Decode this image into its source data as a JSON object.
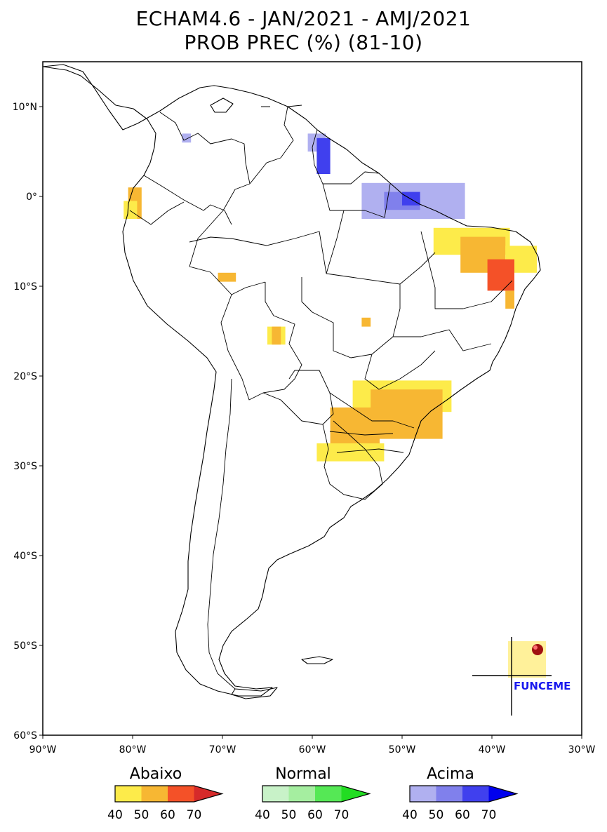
{
  "title": {
    "line1": "ECHAM4.6 - JAN/2021 - AMJ/2021",
    "line2": "PROB PREC (%) (81-10)"
  },
  "map": {
    "lon_range": [
      -90,
      -30
    ],
    "lat_range": [
      -60,
      15
    ],
    "x_ticks": [
      {
        "value": -90,
        "label": "90°W"
      },
      {
        "value": -80,
        "label": "80°W"
      },
      {
        "value": -70,
        "label": "70°W"
      },
      {
        "value": -60,
        "label": "60°W"
      },
      {
        "value": -50,
        "label": "50°W"
      },
      {
        "value": -40,
        "label": "40°W"
      },
      {
        "value": -30,
        "label": "30°W"
      }
    ],
    "y_ticks": [
      {
        "value": 10,
        "label": "10°N"
      },
      {
        "value": 0,
        "label": "0°"
      },
      {
        "value": -10,
        "label": "10°S"
      },
      {
        "value": -20,
        "label": "20°S"
      },
      {
        "value": -30,
        "label": "30°S"
      },
      {
        "value": -40,
        "label": "40°S"
      },
      {
        "value": -50,
        "label": "50°S"
      },
      {
        "value": -60,
        "label": "60°S"
      }
    ],
    "brand_label": "FUNCEME"
  },
  "colors": {
    "abaixo": [
      "#fdeb4a",
      "#f7b733",
      "#f45128",
      "#d62a2a"
    ],
    "normal": [
      "#c8f2c8",
      "#a5eea0",
      "#55e855",
      "#22dd22"
    ],
    "acima": [
      "#b0b0f0",
      "#8080ec",
      "#4040ee",
      "#0000ee"
    ]
  },
  "legends": [
    {
      "title": "Abaixo",
      "ticks": [
        "40",
        "50",
        "60",
        "70"
      ],
      "palette": "abaixo"
    },
    {
      "title": "Normal",
      "ticks": [
        "40",
        "50",
        "60",
        "70"
      ],
      "palette": "normal"
    },
    {
      "title": "Acima",
      "ticks": [
        "40",
        "50",
        "60",
        "70"
      ],
      "palette": "acima"
    }
  ],
  "anomaly_regions": [
    {
      "lon": [
        -80.5,
        -79
      ],
      "lat": [
        -2.5,
        1
      ],
      "category": "abaixo",
      "level": 1
    },
    {
      "lon": [
        -81,
        -79.5
      ],
      "lat": [
        -2.5,
        -0.5
      ],
      "category": "abaixo",
      "level": 0
    },
    {
      "lon": [
        -70.5,
        -68.5
      ],
      "lat": [
        -9.5,
        -8.5
      ],
      "category": "abaixo",
      "level": 1
    },
    {
      "lon": [
        -65,
        -63
      ],
      "lat": [
        -16.5,
        -14.5
      ],
      "category": "abaixo",
      "level": 0
    },
    {
      "lon": [
        -64.5,
        -63.5
      ],
      "lat": [
        -16.5,
        -14.5
      ],
      "category": "abaixo",
      "level": 1
    },
    {
      "lon": [
        -54.5,
        -53.5
      ],
      "lat": [
        -14.5,
        -13.5
      ],
      "category": "abaixo",
      "level": 1
    },
    {
      "lon": [
        -46.5,
        -38
      ],
      "lat": [
        -6.5,
        -3.5
      ],
      "category": "abaixo",
      "level": 0
    },
    {
      "lon": [
        -43.5,
        -38.5
      ],
      "lat": [
        -8.5,
        -4.5
      ],
      "category": "abaixo",
      "level": 1
    },
    {
      "lon": [
        -38.5,
        -35
      ],
      "lat": [
        -8.5,
        -5.5
      ],
      "category": "abaixo",
      "level": 0
    },
    {
      "lon": [
        -40.5,
        -37.5
      ],
      "lat": [
        -10.5,
        -7
      ],
      "category": "abaixo",
      "level": 2
    },
    {
      "lon": [
        -38.5,
        -37.5
      ],
      "lat": [
        -12.5,
        -10.5
      ],
      "category": "abaixo",
      "level": 1
    },
    {
      "lon": [
        -55.5,
        -44.5
      ],
      "lat": [
        -24,
        -20.5
      ],
      "category": "abaixo",
      "level": 0
    },
    {
      "lon": [
        -53.5,
        -45.5
      ],
      "lat": [
        -27,
        -21.5
      ],
      "category": "abaixo",
      "level": 1
    },
    {
      "lon": [
        -58,
        -52.5
      ],
      "lat": [
        -29,
        -23.5
      ],
      "category": "abaixo",
      "level": 1
    },
    {
      "lon": [
        -59.5,
        -52
      ],
      "lat": [
        -29.5,
        -27.5
      ],
      "category": "abaixo",
      "level": 0
    },
    {
      "lon": [
        -74.5,
        -73.5
      ],
      "lat": [
        6,
        7
      ],
      "category": "acima",
      "level": 0
    },
    {
      "lon": [
        -60.5,
        -58.5
      ],
      "lat": [
        5,
        7
      ],
      "category": "acima",
      "level": 0
    },
    {
      "lon": [
        -59.5,
        -58
      ],
      "lat": [
        2.5,
        6.5
      ],
      "category": "acima",
      "level": 2
    },
    {
      "lon": [
        -54.5,
        -43
      ],
      "lat": [
        -2.5,
        1.5
      ],
      "category": "acima",
      "level": 0
    },
    {
      "lon": [
        -52,
        -48
      ],
      "lat": [
        -1.5,
        0.5
      ],
      "category": "acima",
      "level": 1
    },
    {
      "lon": [
        -50,
        -48
      ],
      "lat": [
        -1,
        0.5
      ],
      "category": "acima",
      "level": 2
    }
  ]
}
